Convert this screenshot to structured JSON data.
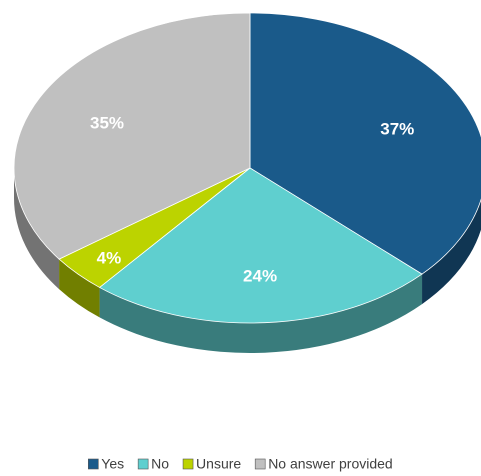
{
  "chart_data": {
    "type": "pie",
    "categories": [
      "Yes",
      "No",
      "Unsure",
      "No answer provided"
    ],
    "values": [
      37,
      24,
      4,
      35
    ],
    "value_labels": [
      "37%",
      "24%",
      "4%",
      "35%"
    ],
    "colors": [
      "#1a5a8a",
      "#5fcfcf",
      "#bcd300",
      "#c0c0c0"
    ],
    "legend": "bottom"
  }
}
